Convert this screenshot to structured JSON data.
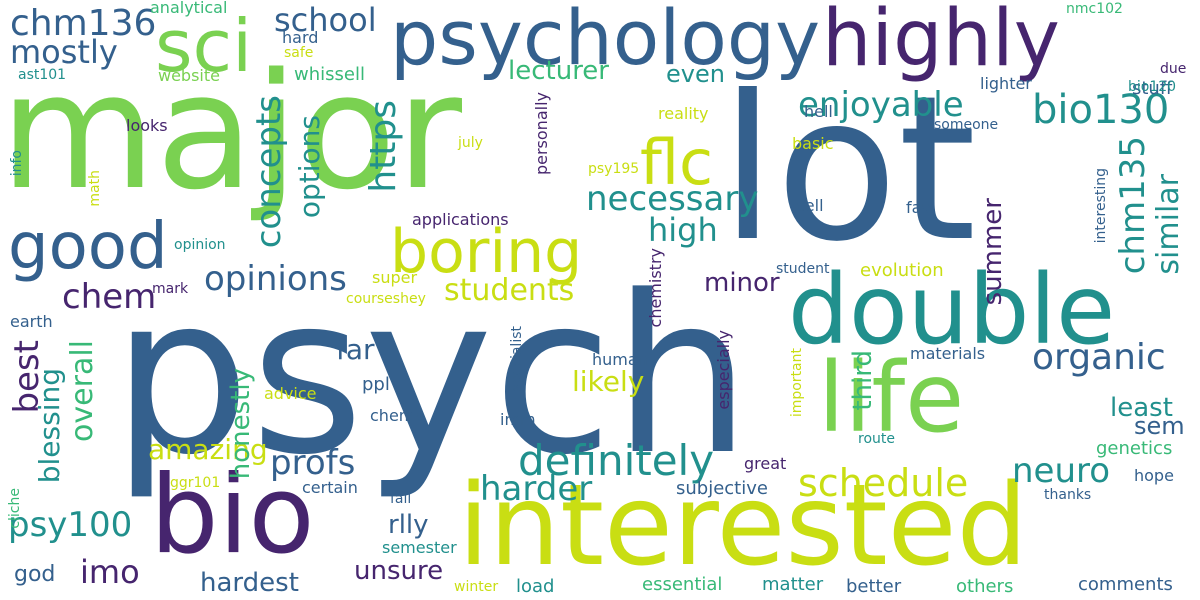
{
  "colors": {
    "purple": "#46256e",
    "blue": "#34608d",
    "teal": "#21908d",
    "green": "#38b977",
    "lime": "#7ad151",
    "yellow": "#c9de13"
  },
  "words": [
    "psych",
    "lot",
    "major",
    "interested",
    "bio",
    "double",
    "life",
    "psychology",
    "highly",
    "sci",
    "boring",
    "good",
    "flc",
    "enjoyable",
    "bio130",
    "definitely",
    "schedule",
    "organic",
    "chm136",
    "school",
    "mostly",
    "opinions",
    "students",
    "chem",
    "profs",
    "neuro",
    "harder",
    "https",
    "concepts",
    "necessary",
    "high",
    "options",
    "chm135",
    "similar",
    "best",
    "overall",
    "blessing",
    "psy100",
    "imo",
    "amazing",
    "honestly",
    "far",
    "likely",
    "least",
    "sem",
    "minor",
    "lecturer",
    "even",
    "summer",
    "third",
    "hardest",
    "rlly",
    "unsure",
    "genetics",
    "god",
    "evolution",
    "analytical",
    "nmc102",
    "hard",
    "safe",
    "whissell",
    "due",
    "stuff",
    "ast101",
    "website",
    "lighter",
    "bio120",
    "hell",
    "looks",
    "reality",
    "someone",
    "july",
    "basic",
    "info",
    "psy195",
    "personally",
    "interesting",
    "math",
    "applications",
    "cell",
    "fav",
    "opinion",
    "student",
    "mark",
    "super",
    "courseshey",
    "earth",
    "human",
    "materials",
    "chemistry",
    "specialist",
    "especially",
    "important",
    "advice",
    "ppl",
    "chems",
    "imm",
    "route",
    "great",
    "cliche",
    "ggr101",
    "certain",
    "subjective",
    "hope",
    "fall",
    "thanks",
    "semester",
    "winter",
    "load",
    "essential",
    "matter",
    "better",
    "others",
    "comments"
  ]
}
